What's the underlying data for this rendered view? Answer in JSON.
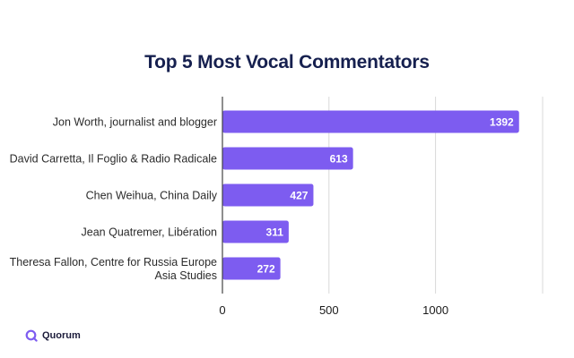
{
  "chart_data": {
    "type": "bar",
    "orientation": "horizontal",
    "title": "Top 5 Most Vocal Commentators",
    "categories": [
      [
        "Jon Worth, journalist and blogger"
      ],
      [
        "David Carretta, Il Foglio & Radio Radicale"
      ],
      [
        "Chen Weihua, China Daily"
      ],
      [
        "Jean Quatremer, Libération"
      ],
      [
        "Theresa Fallon, Centre for Russia Europe",
        "Asia Studies"
      ]
    ],
    "values": [
      1392,
      613,
      427,
      311,
      272
    ],
    "xticks": [
      0,
      500,
      1000
    ],
    "xlim": [
      0,
      1500
    ],
    "grid": true,
    "bar_color": "#7d5cf0"
  },
  "brand": {
    "name": "Quorum",
    "icon": "quorum-logo-icon",
    "accent": "#7d5cf0"
  }
}
